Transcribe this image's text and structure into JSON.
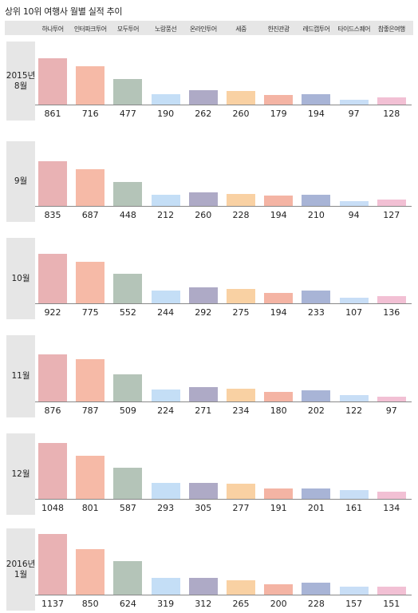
{
  "title": "상위 10위 여행사 월별 실적 추이",
  "colors": [
    "#e9b2b4",
    "#f6baa7",
    "#b4c4b8",
    "#c4def6",
    "#aeaac6",
    "#f9d1a3",
    "#f4b4a4",
    "#a8b4d6",
    "#c8def6",
    "#f2c0d4"
  ],
  "chart_data": {
    "type": "bar",
    "categories": [
      "하나투어",
      "인터파크투어",
      "모두투어",
      "노랑풍선",
      "온라인투어",
      "세중",
      "한진관광",
      "레드캡투어",
      "타이드스퀘어",
      "참좋은여행"
    ],
    "panels": [
      {
        "label": [
          "2015년",
          "8월"
        ],
        "values": [
          861,
          716,
          477,
          190,
          262,
          260,
          179,
          194,
          97,
          128
        ]
      },
      {
        "label": [
          "9월"
        ],
        "values": [
          835,
          687,
          448,
          212,
          260,
          228,
          194,
          210,
          94,
          127
        ]
      },
      {
        "label": [
          "10월"
        ],
        "values": [
          922,
          775,
          552,
          244,
          292,
          275,
          194,
          233,
          107,
          136
        ]
      },
      {
        "label": [
          "11월"
        ],
        "values": [
          876,
          787,
          509,
          224,
          271,
          234,
          180,
          202,
          122,
          97
        ]
      },
      {
        "label": [
          "12월"
        ],
        "values": [
          1048,
          801,
          587,
          293,
          305,
          277,
          191,
          201,
          161,
          134
        ]
      },
      {
        "label": [
          "2016년",
          "1월"
        ],
        "values": [
          1137,
          850,
          624,
          319,
          312,
          265,
          200,
          228,
          157,
          151
        ]
      }
    ]
  }
}
